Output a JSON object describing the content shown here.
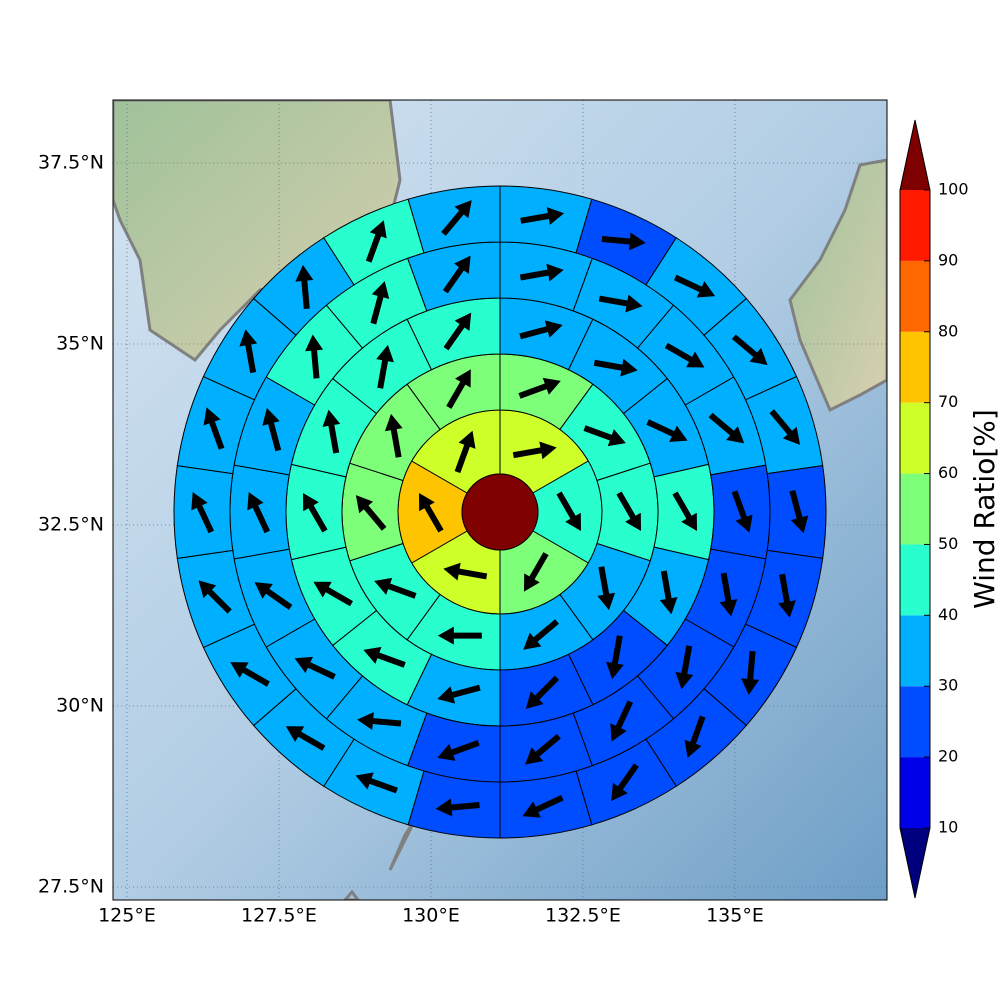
{
  "chart_data": {
    "type": "polar-sector-map",
    "xlim": [
      124.77,
      137.5
    ],
    "ylim": [
      27.32,
      38.37
    ],
    "xticks": [
      {
        "value": 125,
        "label": "125°E"
      },
      {
        "value": 127.5,
        "label": "127.5°E"
      },
      {
        "value": 130,
        "label": "130°E"
      },
      {
        "value": 132.5,
        "label": "132.5°E"
      },
      {
        "value": 135,
        "label": "135°E"
      }
    ],
    "yticks": [
      {
        "value": 27.5,
        "label": "27.5°N"
      },
      {
        "value": 30,
        "label": "30°N"
      },
      {
        "value": 32.5,
        "label": "32.5°N"
      },
      {
        "value": 35,
        "label": "35°N"
      },
      {
        "value": 37.5,
        "label": "37.5°N"
      }
    ],
    "grid": true,
    "center_value": 100,
    "rings": [
      {
        "values": [
          65,
          45,
          55,
          65,
          75,
          65
        ],
        "directions": [
          80,
          150,
          210,
          280,
          330,
          20
        ]
      },
      {
        "values": [
          55,
          45,
          45,
          35,
          35,
          45,
          45,
          55,
          55,
          55
        ],
        "directions": [
          70,
          110,
          150,
          170,
          230,
          270,
          290,
          320,
          350,
          30
        ]
      },
      {
        "values": [
          35,
          35,
          35,
          45,
          35,
          25,
          25,
          35,
          45,
          45,
          45,
          45,
          45,
          45
        ],
        "directions": [
          75,
          100,
          115,
          150,
          170,
          190,
          225,
          255,
          290,
          300,
          330,
          350,
          10,
          35
        ]
      },
      {
        "values": [
          35,
          35,
          35,
          35,
          25,
          25,
          25,
          25,
          25,
          25,
          35,
          35,
          35,
          35,
          35,
          45,
          45,
          35
        ],
        "directions": [
          80,
          100,
          120,
          130,
          160,
          170,
          190,
          205,
          230,
          250,
          275,
          295,
          305,
          335,
          345,
          355,
          15,
          35
        ]
      },
      {
        "values": [
          35,
          25,
          35,
          35,
          35,
          25,
          25,
          25,
          25,
          25,
          25,
          25,
          35,
          35,
          35,
          35,
          35,
          35,
          35,
          35,
          45,
          35
        ],
        "directions": [
          80,
          95,
          115,
          130,
          140,
          165,
          170,
          185,
          200,
          215,
          245,
          265,
          290,
          300,
          300,
          315,
          335,
          340,
          350,
          355,
          20,
          40
        ]
      }
    ],
    "colorbar": {
      "label": "Wind Ratio[%]",
      "ticks": [
        10,
        20,
        30,
        40,
        50,
        60,
        70,
        80,
        90,
        100
      ],
      "colors": [
        "#00007f",
        "#0000e8",
        "#004cff",
        "#00b0ff",
        "#29ffce",
        "#7dff7a",
        "#ceff29",
        "#ffc400",
        "#ff6800",
        "#ff1a00",
        "#7f0000"
      ]
    }
  }
}
